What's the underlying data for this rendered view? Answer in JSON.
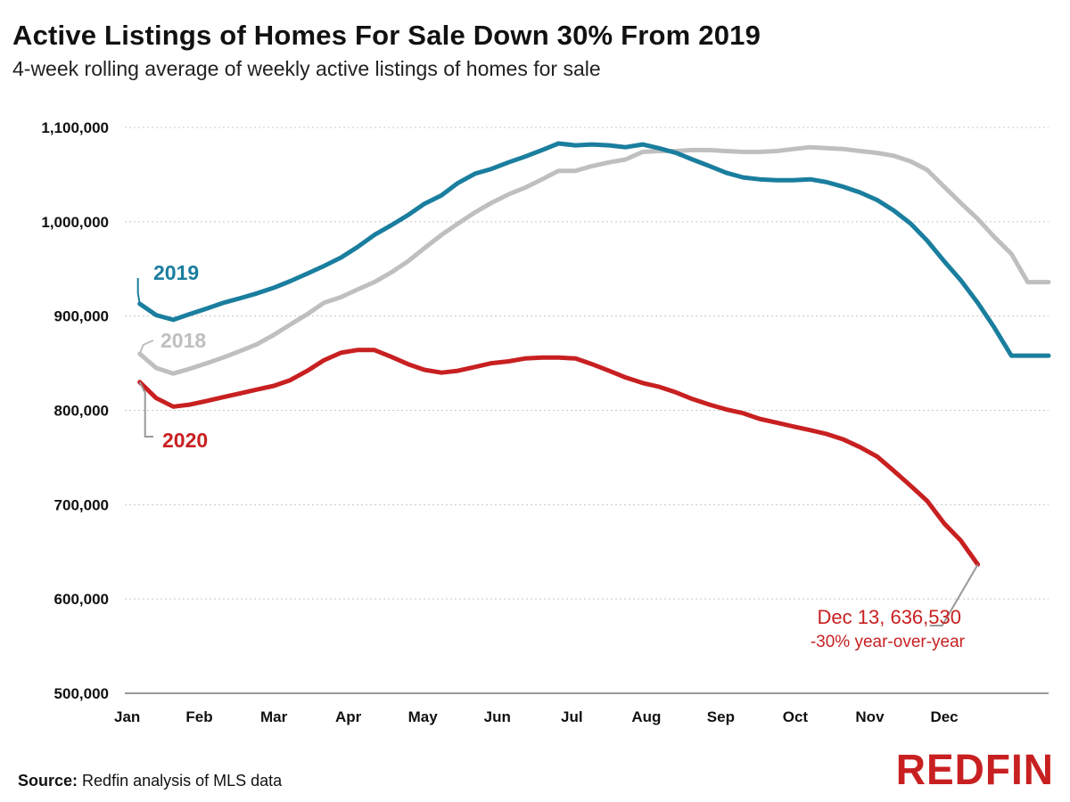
{
  "title": "Active Listings of Homes For Sale Down 30% From 2019",
  "subtitle": "4-week rolling average of weekly active listings of homes for sale",
  "footer": {
    "source_label": "Source:",
    "source_text": "Redfin analysis of MLS data"
  },
  "logo": {
    "text": "REDFIN",
    "color": "#c82021"
  },
  "colors": {
    "y2019": "#1a7e9e",
    "y2018": "#bfbfbf",
    "y2020": "#c82021",
    "grid": "#c8c8c8",
    "text": "#111111"
  },
  "chart_data": {
    "type": "line",
    "title": "Active Listings of Homes For Sale Down 30% From 2019",
    "subtitle": "4-week rolling average of weekly active listings of homes for sale",
    "xlabel": "",
    "ylabel": "",
    "x_axis": "week of year (Jan to Dec)",
    "xlim": [
      0,
      12.4
    ],
    "ylim": [
      500000,
      1100000
    ],
    "y_ticks": [
      500000,
      600000,
      700000,
      800000,
      900000,
      1000000,
      1100000
    ],
    "y_tick_labels": [
      "500,000",
      "600,000",
      "700,000",
      "800,000",
      "900,000",
      "1,000,000",
      "1,100,000"
    ],
    "x_ticks": [
      0,
      1,
      2,
      3,
      4,
      5,
      6,
      7,
      8,
      9,
      10,
      11
    ],
    "x_tick_labels": [
      "Jan",
      "Feb",
      "Mar",
      "Apr",
      "May",
      "Jun",
      "Jul",
      "Aug",
      "Sep",
      "Oct",
      "Nov",
      "Dec"
    ],
    "grid": "horizontal dotted",
    "series": [
      {
        "name": "2018",
        "color": "#bfbfbf",
        "x": [
          0.2,
          0.42,
          0.65,
          0.87,
          1.1,
          1.32,
          1.55,
          1.77,
          2.0,
          2.22,
          2.45,
          2.67,
          2.9,
          3.12,
          3.35,
          3.57,
          3.8,
          4.02,
          4.25,
          4.47,
          4.7,
          4.92,
          5.15,
          5.37,
          5.6,
          5.82,
          6.05,
          6.27,
          6.5,
          6.72,
          6.95,
          7.17,
          7.4,
          7.62,
          7.85,
          8.07,
          8.3,
          8.52,
          8.75,
          8.97,
          9.2,
          9.42,
          9.65,
          9.87,
          10.1,
          10.32,
          10.55,
          10.77,
          11.0,
          11.22,
          11.45,
          11.67,
          11.9,
          12.12,
          12.4
        ],
        "values": [
          860000,
          845000,
          839000,
          844000,
          850000,
          856000,
          863000,
          870000,
          880000,
          891000,
          902000,
          914000,
          920000,
          928000,
          936000,
          946000,
          958000,
          972000,
          986000,
          998000,
          1010000,
          1020000,
          1029000,
          1036000,
          1045000,
          1054000,
          1054000,
          1059000,
          1063000,
          1066000,
          1074000,
          1075000,
          1075000,
          1076000,
          1076000,
          1075000,
          1074000,
          1074000,
          1075000,
          1077000,
          1079000,
          1078000,
          1077000,
          1075000,
          1073000,
          1070000,
          1064000,
          1055000,
          1037000,
          1020000,
          1003000,
          984000,
          966000,
          936000,
          936000
        ]
      },
      {
        "name": "2019",
        "color": "#1a7e9e",
        "x": [
          0.2,
          0.42,
          0.65,
          0.87,
          1.1,
          1.32,
          1.55,
          1.77,
          2.0,
          2.22,
          2.45,
          2.67,
          2.9,
          3.12,
          3.35,
          3.57,
          3.8,
          4.02,
          4.25,
          4.47,
          4.7,
          4.92,
          5.15,
          5.37,
          5.6,
          5.82,
          6.05,
          6.27,
          6.5,
          6.72,
          6.95,
          7.17,
          7.4,
          7.62,
          7.85,
          8.07,
          8.3,
          8.52,
          8.75,
          8.97,
          9.2,
          9.42,
          9.65,
          9.87,
          10.1,
          10.32,
          10.55,
          10.77,
          11.0,
          11.22,
          11.45,
          11.67,
          11.9,
          12.12,
          12.4
        ],
        "values": [
          913000,
          901000,
          896000,
          902000,
          908000,
          914000,
          919000,
          924000,
          930000,
          937000,
          945000,
          953000,
          962000,
          973000,
          986000,
          996000,
          1007000,
          1019000,
          1028000,
          1041000,
          1051000,
          1056000,
          1063000,
          1069000,
          1076000,
          1083000,
          1081000,
          1082000,
          1081000,
          1079000,
          1082000,
          1078000,
          1073000,
          1066000,
          1059000,
          1052000,
          1047000,
          1045000,
          1044000,
          1044000,
          1045000,
          1042000,
          1037000,
          1031000,
          1023000,
          1012000,
          998000,
          980000,
          958000,
          938000,
          914000,
          888000,
          858000,
          858000,
          858000
        ]
      },
      {
        "name": "2020",
        "color": "#c82021",
        "x": [
          0.2,
          0.42,
          0.65,
          0.87,
          1.1,
          1.32,
          1.55,
          1.77,
          2.0,
          2.22,
          2.45,
          2.67,
          2.9,
          3.12,
          3.35,
          3.57,
          3.8,
          4.02,
          4.25,
          4.47,
          4.7,
          4.92,
          5.15,
          5.37,
          5.6,
          5.82,
          6.05,
          6.27,
          6.5,
          6.72,
          6.95,
          7.17,
          7.4,
          7.62,
          7.85,
          8.07,
          8.3,
          8.52,
          8.75,
          8.97,
          9.2,
          9.42,
          9.65,
          9.87,
          10.1,
          10.32,
          10.55,
          10.77,
          11.0,
          11.22,
          11.45
        ],
        "values": [
          830000,
          813000,
          804000,
          806000,
          810000,
          814000,
          818000,
          822000,
          826000,
          832000,
          842000,
          853000,
          861000,
          864000,
          864000,
          857000,
          849000,
          843000,
          840000,
          842000,
          846000,
          850000,
          852000,
          855000,
          856000,
          856000,
          855000,
          849000,
          842000,
          835000,
          829000,
          825000,
          819000,
          812000,
          806000,
          801000,
          797000,
          791000,
          787000,
          783000,
          779000,
          775000,
          769000,
          761000,
          751000,
          736000,
          720000,
          704000,
          680000,
          662000,
          636530
        ]
      }
    ],
    "annotations": [
      {
        "text": "Dec 13, 636,530",
        "series": "2020",
        "x": 11.45,
        "y": 636530
      },
      {
        "text": "-30% year-over-year",
        "series": "2020"
      }
    ],
    "series_labels": [
      "2019",
      "2018",
      "2020"
    ]
  }
}
